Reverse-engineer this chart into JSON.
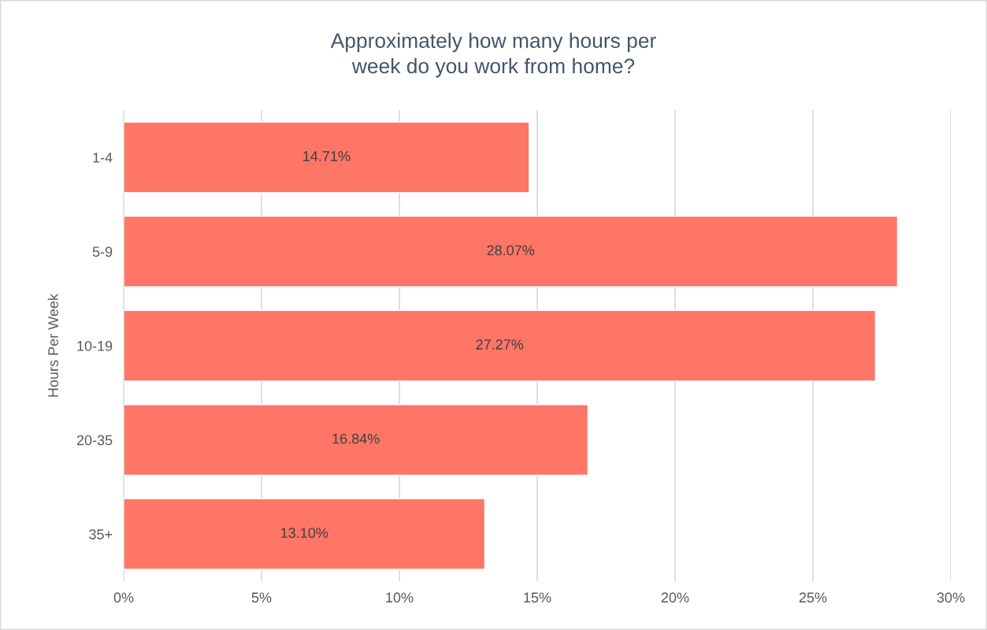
{
  "chart_data": {
    "type": "bar",
    "orientation": "horizontal",
    "title": "Approximately how many hours per\nweek do you work from home?",
    "ylabel": "Hours Per Week",
    "categories": [
      "1-4",
      "5-9",
      "10-19",
      "20-35",
      "35+"
    ],
    "values": [
      14.71,
      28.07,
      27.27,
      16.84,
      13.1
    ],
    "value_labels": [
      "14.71%",
      "28.07%",
      "27.27%",
      "16.84%",
      "13.10%"
    ],
    "color": "#ff7566",
    "xlim": [
      0,
      30
    ],
    "xticks": [
      {
        "value": 0,
        "label": "0%"
      },
      {
        "value": 5,
        "label": "5%"
      },
      {
        "value": 10,
        "label": "10%"
      },
      {
        "value": 15,
        "label": "15%"
      },
      {
        "value": 20,
        "label": "20%"
      },
      {
        "value": 25,
        "label": "25%"
      },
      {
        "value": 30,
        "label": "30%"
      }
    ],
    "grid": "x"
  }
}
